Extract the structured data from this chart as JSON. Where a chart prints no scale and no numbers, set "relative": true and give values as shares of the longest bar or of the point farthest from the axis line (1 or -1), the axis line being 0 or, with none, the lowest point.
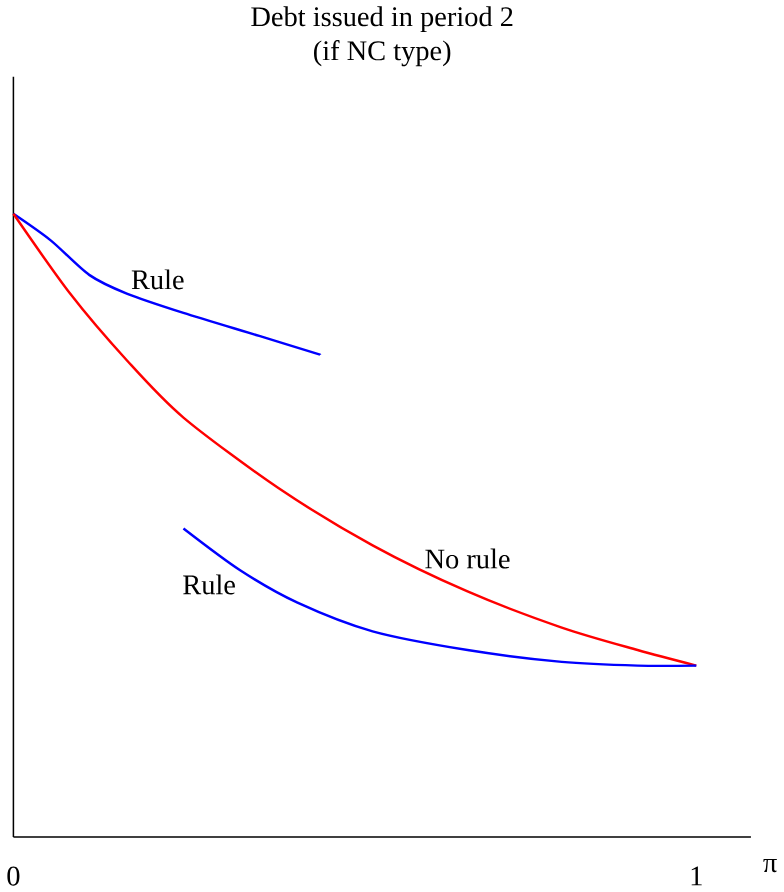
{
  "chart_data": {
    "type": "line",
    "title": "Debt issued in period 2",
    "subtitle": "(if NC type)",
    "xlabel": "π",
    "relative": true,
    "xlim": [
      0,
      1.08
    ],
    "xticks": [
      0,
      1
    ],
    "grid": false,
    "marker": "none",
    "line_style": "solid",
    "series": [
      {
        "name": "Rule",
        "color": "#0000ff",
        "x": [
          0,
          0.055,
          0.111,
          0.166,
          0.249,
          0.36,
          0.449
        ],
        "values": [
          1.0,
          0.957,
          0.902,
          0.872,
          0.841,
          0.804,
          0.774
        ]
      },
      {
        "name": "No rule",
        "color": "#ff0000",
        "x": [
          0,
          0.083,
          0.166,
          0.249,
          0.388,
          0.526,
          0.665,
          0.803,
          0.914,
          1
        ],
        "values": [
          1.0,
          0.872,
          0.765,
          0.673,
          0.56,
          0.468,
          0.394,
          0.336,
          0.3,
          0.275
        ]
      },
      {
        "name": "Rule",
        "color": "#0000ff",
        "x": [
          0.249,
          0.332,
          0.416,
          0.526,
          0.665,
          0.803,
          0.914,
          1
        ],
        "values": [
          0.495,
          0.428,
          0.376,
          0.33,
          0.3,
          0.281,
          0.275,
          0.275
        ]
      }
    ]
  }
}
